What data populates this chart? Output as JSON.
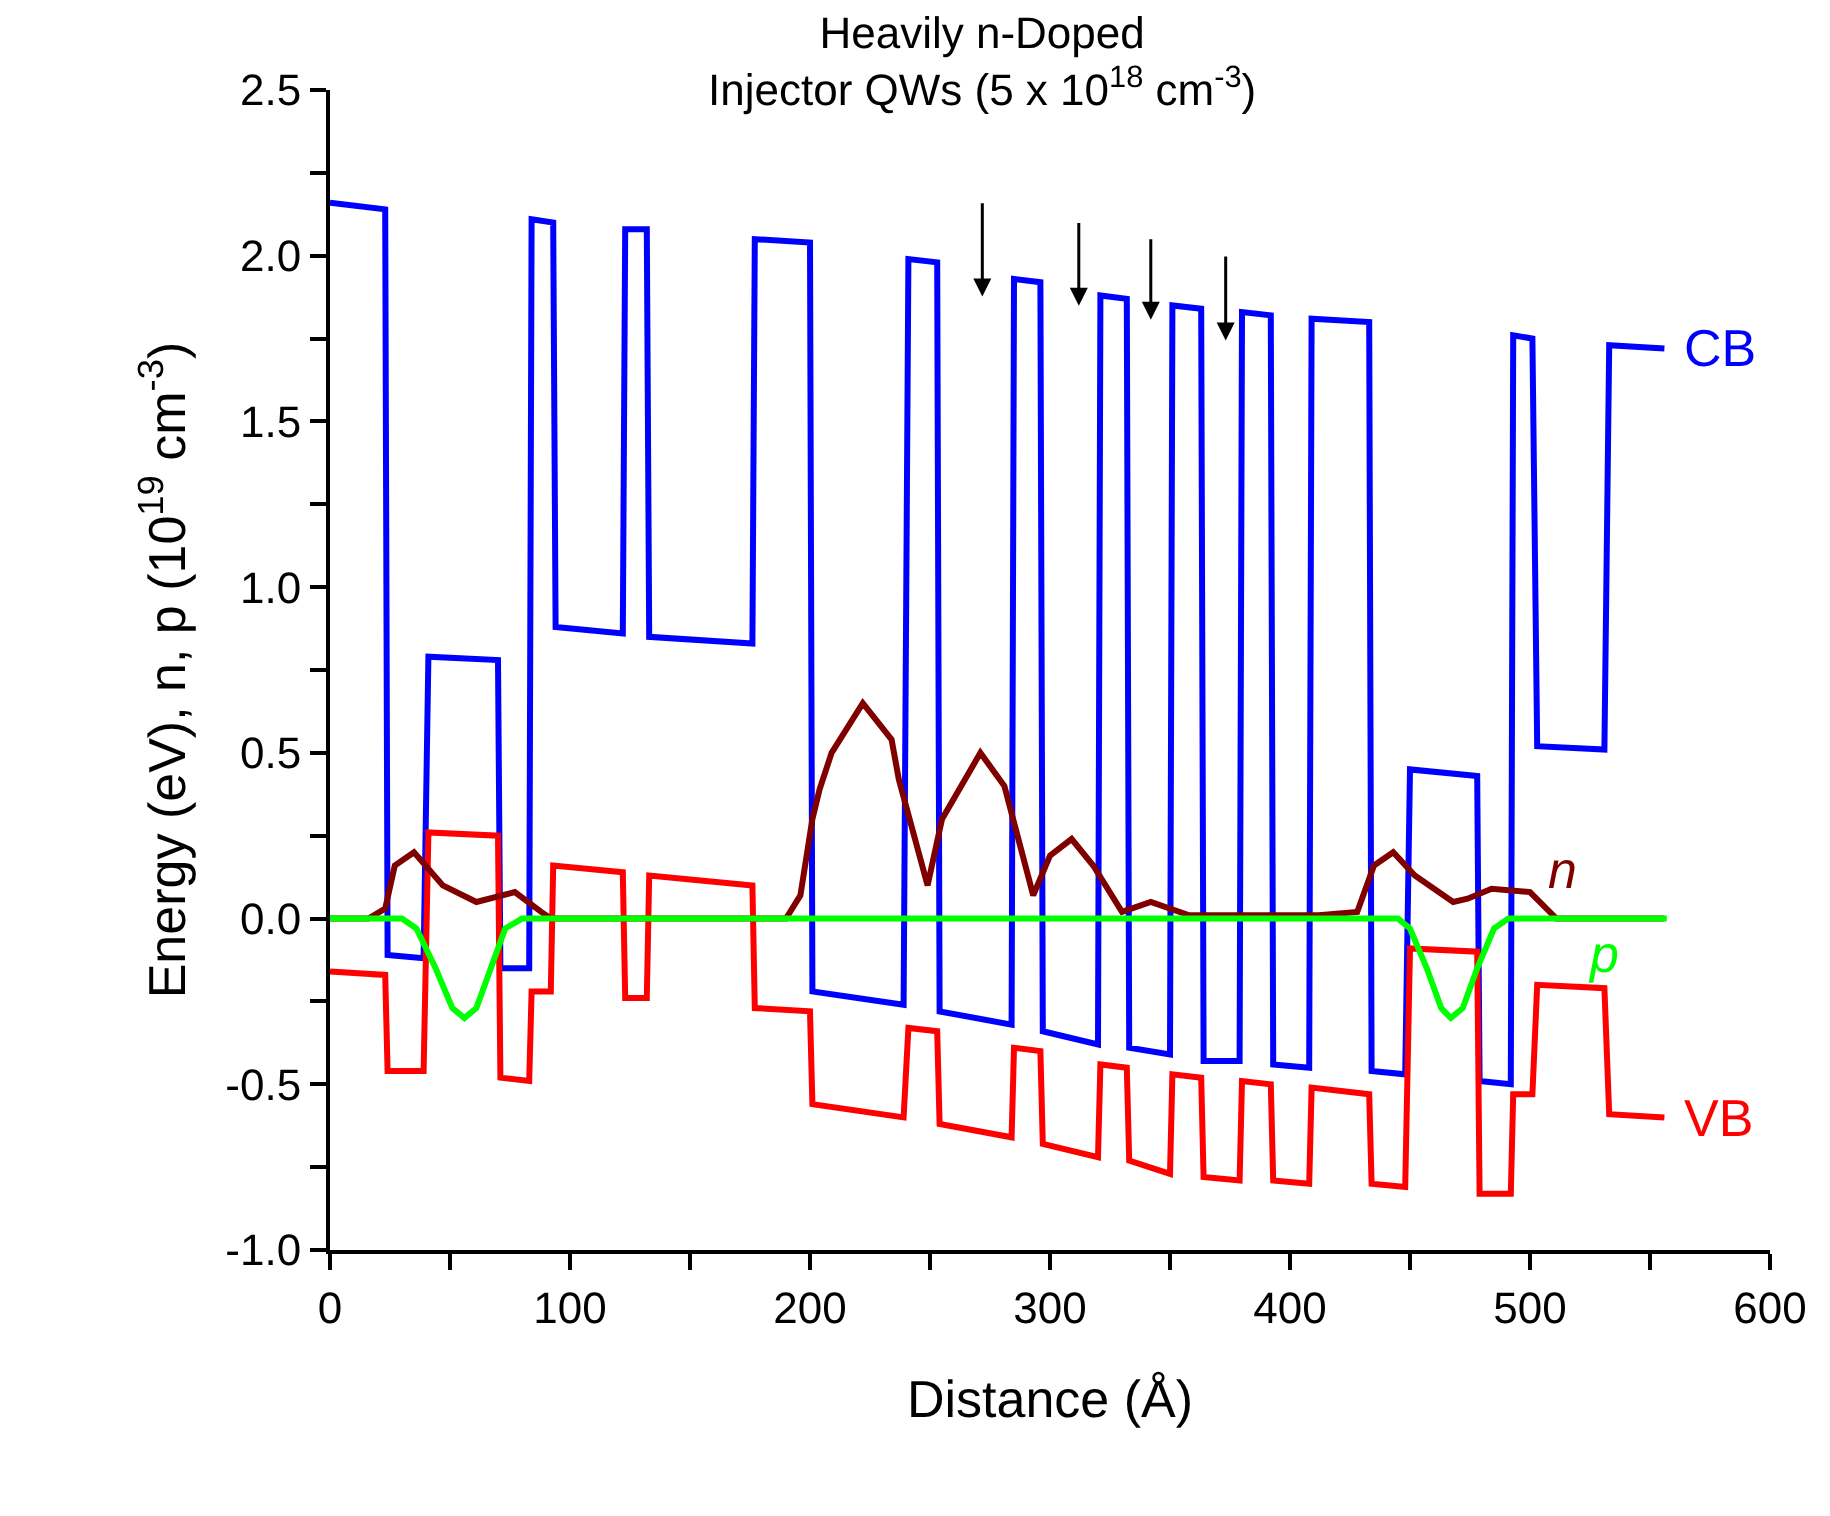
{
  "chart_data": {
    "type": "line",
    "annotations": [
      "Heavily n-Doped\nInjector QWs (5 x 10$^{18}$ cm$^{-3}$)"
    ],
    "xlabel": "Distance (Å)",
    "ylabel": "Energy (eV), n, p (10$^{19}$ cm$^{-3}$)",
    "xlim": [
      0,
      600
    ],
    "ylim": [
      -1.0,
      2.5
    ],
    "xticks": [
      0,
      {
        "value": 50,
        "label": null
      },
      100,
      {
        "value": 150,
        "label": null
      },
      200,
      {
        "value": 250,
        "label": null
      },
      300,
      {
        "value": 350,
        "label": null
      },
      400,
      {
        "value": 450,
        "label": null
      },
      500,
      {
        "value": 550,
        "label": null
      },
      600
    ],
    "yticks": [
      {
        "value": -1.0,
        "label": "-1.0"
      },
      {
        "value": -0.75,
        "label": null
      },
      -0.5,
      {
        "value": -0.25,
        "label": null
      },
      {
        "value": 0.0,
        "label": "0.0"
      },
      {
        "value": 0.25,
        "label": null
      },
      0.5,
      {
        "value": 0.75,
        "label": null
      },
      {
        "value": 1.0,
        "label": "1.0"
      },
      {
        "value": 1.25,
        "label": null
      },
      1.5,
      {
        "value": 1.75,
        "label": null
      },
      {
        "value": 2.0,
        "label": "2.0"
      },
      {
        "value": 2.25,
        "label": null
      },
      2.5
    ],
    "legend": false,
    "marker": "none",
    "line_style": "solid",
    "series": [
      {
        "name": "CB",
        "color": "#0000ff",
        "x": [
          0,
          23,
          24,
          39,
          41,
          70,
          71,
          83,
          84,
          93,
          94,
          122,
          123,
          132,
          133,
          176,
          177,
          200,
          201,
          239,
          241,
          253,
          254,
          284,
          285,
          296,
          297,
          320,
          321,
          332,
          333,
          350,
          351,
          363,
          364,
          379,
          380,
          392,
          393,
          408,
          409,
          433,
          434,
          448,
          450,
          478,
          479,
          492,
          493,
          501,
          503,
          531,
          533,
          556
        ],
        "values": [
          2.16,
          2.14,
          -0.11,
          -0.12,
          0.79,
          0.78,
          -0.15,
          -0.15,
          2.11,
          2.1,
          0.88,
          0.86,
          2.08,
          2.08,
          0.85,
          0.83,
          2.05,
          2.04,
          -0.22,
          -0.26,
          1.99,
          1.98,
          -0.28,
          -0.32,
          1.93,
          1.92,
          -0.34,
          -0.38,
          1.88,
          1.87,
          -0.39,
          -0.41,
          1.85,
          1.84,
          -0.43,
          -0.43,
          1.83,
          1.82,
          -0.44,
          -0.45,
          1.81,
          1.8,
          -0.46,
          -0.47,
          0.45,
          0.43,
          -0.49,
          -0.5,
          1.76,
          1.75,
          0.52,
          0.51,
          1.73,
          1.72
        ]
      },
      {
        "name": "VB",
        "color": "#ff0000",
        "x": [
          0,
          23,
          24,
          39,
          41,
          70,
          71,
          83,
          84,
          92,
          93,
          122,
          123,
          132,
          133,
          176,
          177,
          200,
          201,
          239,
          241,
          253,
          254,
          284,
          285,
          296,
          297,
          320,
          321,
          332,
          333,
          350,
          351,
          363,
          364,
          379,
          380,
          392,
          393,
          408,
          409,
          433,
          434,
          448,
          450,
          478,
          479,
          492,
          493,
          501,
          503,
          531,
          533,
          556
        ],
        "values": [
          -0.16,
          -0.17,
          -0.46,
          -0.46,
          0.26,
          0.25,
          -0.48,
          -0.49,
          -0.22,
          -0.22,
          0.16,
          0.14,
          -0.24,
          -0.24,
          0.13,
          0.1,
          -0.27,
          -0.28,
          -0.56,
          -0.6,
          -0.33,
          -0.34,
          -0.62,
          -0.66,
          -0.39,
          -0.4,
          -0.68,
          -0.72,
          -0.44,
          -0.45,
          -0.73,
          -0.77,
          -0.47,
          -0.48,
          -0.78,
          -0.79,
          -0.49,
          -0.5,
          -0.79,
          -0.8,
          -0.51,
          -0.53,
          -0.8,
          -0.81,
          -0.09,
          -0.1,
          -0.83,
          -0.83,
          -0.53,
          -0.53,
          -0.2,
          -0.21,
          -0.59,
          -0.6
        ]
      },
      {
        "name": "n",
        "color": "#800000",
        "x": [
          0,
          16,
          23,
          27,
          35,
          47,
          61,
          77,
          88,
          92,
          190,
          196,
          201,
          204,
          209,
          222,
          234,
          237,
          249,
          255,
          271,
          281,
          293,
          300,
          309,
          318,
          330,
          342,
          358,
          412,
          428,
          435,
          443,
          452,
          468,
          474,
          484,
          500,
          511,
          556
        ],
        "values": [
          0,
          0,
          0.03,
          0.16,
          0.2,
          0.1,
          0.05,
          0.08,
          0.02,
          0,
          0,
          0.07,
          0.3,
          0.39,
          0.5,
          0.65,
          0.54,
          0.42,
          0.1,
          0.3,
          0.5,
          0.4,
          0.07,
          0.19,
          0.24,
          0.16,
          0.02,
          0.05,
          0.01,
          0.01,
          0.02,
          0.16,
          0.2,
          0.13,
          0.05,
          0.06,
          0.09,
          0.08,
          0,
          0
        ]
      },
      {
        "name": "p",
        "color": "#00ff00",
        "x": [
          0,
          30,
          36,
          44,
          51,
          56,
          61,
          67,
          73,
          80,
          445,
          450,
          457,
          463,
          467,
          472,
          478,
          485,
          491,
          557
        ],
        "values": [
          0,
          0,
          -0.03,
          -0.15,
          -0.27,
          -0.3,
          -0.27,
          -0.15,
          -0.03,
          0,
          0,
          -0.03,
          -0.15,
          -0.27,
          -0.3,
          -0.27,
          -0.15,
          -0.03,
          0,
          0
        ]
      }
    ]
  }
}
